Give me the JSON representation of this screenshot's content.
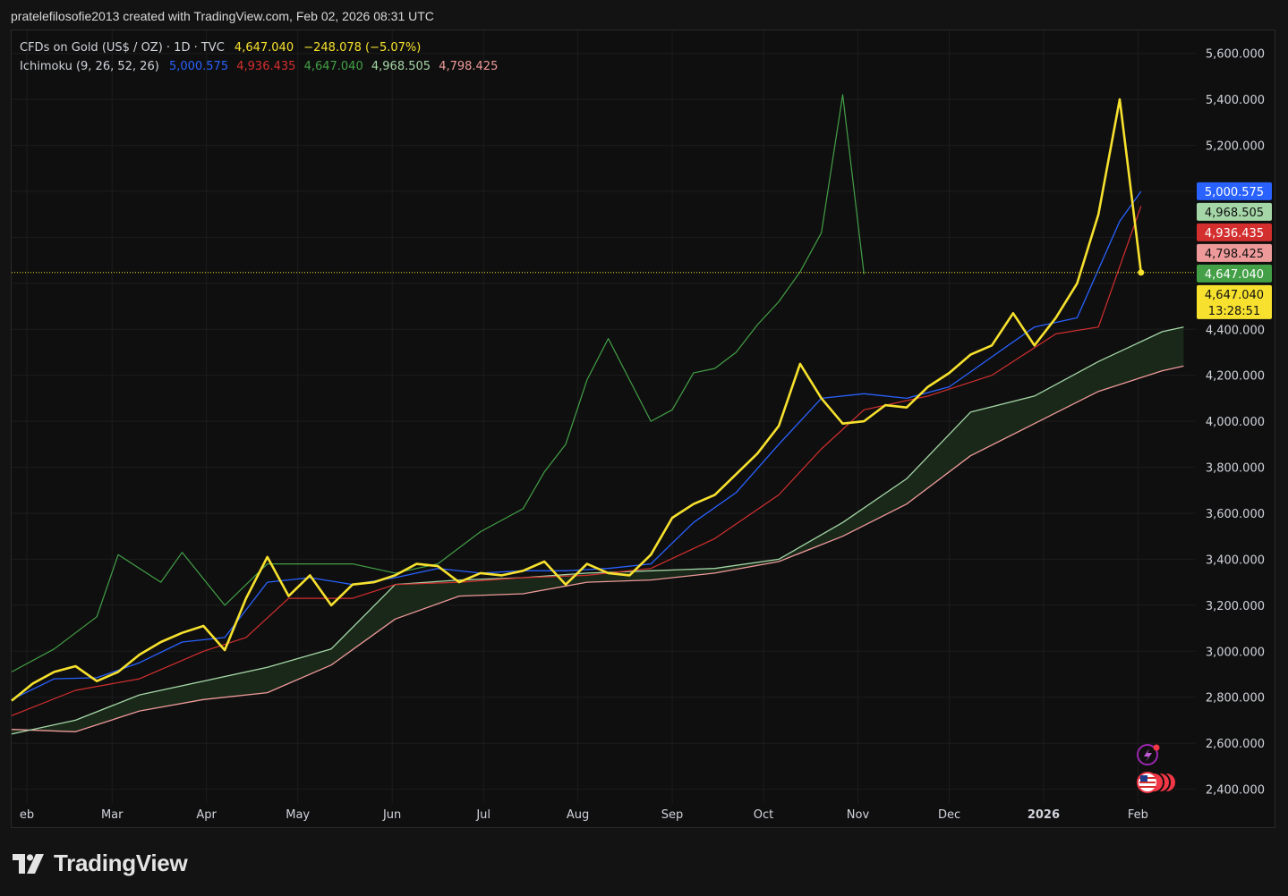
{
  "header": {
    "text": "pratelefilosofie2013 created with TradingView.com, Feb 02, 2026 08:31 UTC"
  },
  "legend": {
    "symbol": "CFDs on Gold (US$ / OZ) · 1D · TVC",
    "price": "4,647.040",
    "change": "−248.078 (−5.07%)",
    "indicator": "Ichimoku (9, 26, 52, 26)",
    "conversion": "5,000.575",
    "base": "4,936.435",
    "lagging": "4,647.040",
    "span_a": "4,968.505",
    "span_b": "4,798.425"
  },
  "brand": {
    "name": "TradingView"
  },
  "colors": {
    "price": "#f7e12e",
    "conversion": "#2962ff",
    "base": "#d32f2f",
    "lagging": "#43a047",
    "span_a": "#a5d6a7",
    "span_b": "#ef9a9a",
    "cloud_bull": "#1a2a1a",
    "cloud_bear": "#2a1a1a"
  },
  "chart_data": {
    "type": "line",
    "x_ticks": [
      {
        "label": "eb",
        "date": "2025-02-01"
      },
      {
        "label": "Mar",
        "date": "2025-03-01"
      },
      {
        "label": "Apr",
        "date": "2025-04-01"
      },
      {
        "label": "May",
        "date": "2025-05-01"
      },
      {
        "label": "Jun",
        "date": "2025-06-01"
      },
      {
        "label": "Jul",
        "date": "2025-07-01"
      },
      {
        "label": "Aug",
        "date": "2025-08-01"
      },
      {
        "label": "Sep",
        "date": "2025-09-01"
      },
      {
        "label": "Oct",
        "date": "2025-10-01"
      },
      {
        "label": "Nov",
        "date": "2025-11-01"
      },
      {
        "label": "Dec",
        "date": "2025-12-01"
      },
      {
        "label": "2026",
        "date": "2026-01-01",
        "bold": true
      },
      {
        "label": "Feb",
        "date": "2026-02-01"
      }
    ],
    "y_ticks": [
      "2,400.000",
      "2,600.000",
      "2,800.000",
      "3,000.000",
      "3,200.000",
      "3,400.000",
      "3,600.000",
      "3,800.000",
      "4,000.000",
      "4,200.000",
      "4,400.000",
      "5,200.000",
      "5,400.000",
      "5,600.000"
    ],
    "ylim": [
      2340,
      5700
    ],
    "xlim": [
      "2025-01-27",
      "2026-02-20"
    ],
    "last_price_line": 4647.04,
    "price_tags": [
      {
        "value": 5000.575,
        "label": "5,000.575",
        "bg": "#2962ff",
        "fg": "#ffffff"
      },
      {
        "value": 4968.505,
        "label": "4,968.505",
        "bg": "#a5d6a7",
        "fg": "#111111"
      },
      {
        "value": 4936.435,
        "label": "4,936.435",
        "bg": "#d32f2f",
        "fg": "#ffffff"
      },
      {
        "value": 4798.425,
        "label": "4,798.425",
        "bg": "#ef9a9a",
        "fg": "#111111"
      },
      {
        "value": 4647.04,
        "label": "4,647.040",
        "bg": "#43a047",
        "fg": "#ffffff"
      },
      {
        "value": 4647.04,
        "label": "4,647.040",
        "sub": "13:28:51",
        "bg": "#f7e12e",
        "fg": "#111111"
      }
    ],
    "series": [
      {
        "name": "CFDs on Gold (US$ / OZ)",
        "key": "price",
        "points": [
          [
            "2025-01-27",
            2785
          ],
          [
            "2025-02-03",
            2860
          ],
          [
            "2025-02-10",
            2910
          ],
          [
            "2025-02-17",
            2935
          ],
          [
            "2025-02-24",
            2870
          ],
          [
            "2025-03-03",
            2910
          ],
          [
            "2025-03-10",
            2985
          ],
          [
            "2025-03-17",
            3040
          ],
          [
            "2025-03-24",
            3080
          ],
          [
            "2025-03-31",
            3110
          ],
          [
            "2025-04-07",
            3005
          ],
          [
            "2025-04-14",
            3230
          ],
          [
            "2025-04-21",
            3410
          ],
          [
            "2025-04-28",
            3240
          ],
          [
            "2025-05-05",
            3330
          ],
          [
            "2025-05-12",
            3200
          ],
          [
            "2025-05-19",
            3290
          ],
          [
            "2025-05-26",
            3300
          ],
          [
            "2025-06-02",
            3330
          ],
          [
            "2025-06-09",
            3380
          ],
          [
            "2025-06-16",
            3370
          ],
          [
            "2025-06-23",
            3300
          ],
          [
            "2025-06-30",
            3340
          ],
          [
            "2025-07-07",
            3330
          ],
          [
            "2025-07-14",
            3350
          ],
          [
            "2025-07-21",
            3390
          ],
          [
            "2025-07-28",
            3290
          ],
          [
            "2025-08-04",
            3380
          ],
          [
            "2025-08-11",
            3340
          ],
          [
            "2025-08-18",
            3330
          ],
          [
            "2025-08-25",
            3420
          ],
          [
            "2025-09-01",
            3580
          ],
          [
            "2025-09-08",
            3640
          ],
          [
            "2025-09-15",
            3680
          ],
          [
            "2025-09-22",
            3770
          ],
          [
            "2025-09-29",
            3860
          ],
          [
            "2025-10-06",
            3980
          ],
          [
            "2025-10-13",
            4250
          ],
          [
            "2025-10-20",
            4100
          ],
          [
            "2025-10-27",
            3990
          ],
          [
            "2025-11-03",
            4000
          ],
          [
            "2025-11-10",
            4070
          ],
          [
            "2025-11-17",
            4060
          ],
          [
            "2025-11-24",
            4150
          ],
          [
            "2025-12-01",
            4210
          ],
          [
            "2025-12-08",
            4290
          ],
          [
            "2025-12-15",
            4330
          ],
          [
            "2025-12-22",
            4470
          ],
          [
            "2025-12-29",
            4330
          ],
          [
            "2026-01-05",
            4450
          ],
          [
            "2026-01-12",
            4600
          ],
          [
            "2026-01-19",
            4900
          ],
          [
            "2026-01-26",
            5400
          ],
          [
            "2026-02-02",
            4647
          ]
        ]
      },
      {
        "name": "Conversion Line",
        "key": "conversion",
        "points": [
          [
            "2025-01-27",
            2790
          ],
          [
            "2025-02-10",
            2880
          ],
          [
            "2025-02-24",
            2885
          ],
          [
            "2025-03-10",
            2950
          ],
          [
            "2025-03-24",
            3040
          ],
          [
            "2025-04-07",
            3060
          ],
          [
            "2025-04-21",
            3300
          ],
          [
            "2025-05-05",
            3320
          ],
          [
            "2025-05-19",
            3290
          ],
          [
            "2025-06-02",
            3320
          ],
          [
            "2025-06-16",
            3360
          ],
          [
            "2025-06-30",
            3340
          ],
          [
            "2025-07-14",
            3350
          ],
          [
            "2025-07-28",
            3350
          ],
          [
            "2025-08-11",
            3360
          ],
          [
            "2025-08-25",
            3380
          ],
          [
            "2025-09-08",
            3560
          ],
          [
            "2025-09-22",
            3690
          ],
          [
            "2025-10-06",
            3900
          ],
          [
            "2025-10-20",
            4100
          ],
          [
            "2025-11-03",
            4120
          ],
          [
            "2025-11-17",
            4100
          ],
          [
            "2025-12-01",
            4150
          ],
          [
            "2025-12-15",
            4280
          ],
          [
            "2025-12-29",
            4410
          ],
          [
            "2026-01-12",
            4450
          ],
          [
            "2026-01-26",
            4870
          ],
          [
            "2026-02-02",
            5000
          ]
        ]
      },
      {
        "name": "Base Line",
        "key": "base",
        "points": [
          [
            "2025-01-27",
            2720
          ],
          [
            "2025-02-17",
            2830
          ],
          [
            "2025-03-10",
            2880
          ],
          [
            "2025-03-31",
            3000
          ],
          [
            "2025-04-14",
            3060
          ],
          [
            "2025-04-28",
            3230
          ],
          [
            "2025-05-19",
            3230
          ],
          [
            "2025-06-02",
            3290
          ],
          [
            "2025-06-23",
            3300
          ],
          [
            "2025-07-14",
            3320
          ],
          [
            "2025-08-04",
            3330
          ],
          [
            "2025-08-25",
            3360
          ],
          [
            "2025-09-15",
            3490
          ],
          [
            "2025-10-06",
            3680
          ],
          [
            "2025-10-20",
            3880
          ],
          [
            "2025-11-03",
            4050
          ],
          [
            "2025-11-24",
            4110
          ],
          [
            "2025-12-15",
            4200
          ],
          [
            "2026-01-05",
            4380
          ],
          [
            "2026-01-19",
            4410
          ],
          [
            "2026-02-02",
            4936
          ]
        ]
      },
      {
        "name": "Lagging Span",
        "key": "lagging",
        "points": [
          [
            "2025-01-27",
            2910
          ],
          [
            "2025-02-10",
            3010
          ],
          [
            "2025-02-24",
            3150
          ],
          [
            "2025-03-03",
            3420
          ],
          [
            "2025-03-17",
            3300
          ],
          [
            "2025-03-24",
            3430
          ],
          [
            "2025-04-07",
            3200
          ],
          [
            "2025-04-21",
            3380
          ],
          [
            "2025-05-05",
            3380
          ],
          [
            "2025-05-19",
            3380
          ],
          [
            "2025-06-02",
            3340
          ],
          [
            "2025-06-16",
            3380
          ],
          [
            "2025-06-30",
            3520
          ],
          [
            "2025-07-14",
            3620
          ],
          [
            "2025-07-21",
            3780
          ],
          [
            "2025-07-28",
            3900
          ],
          [
            "2025-08-04",
            4180
          ],
          [
            "2025-08-11",
            4360
          ],
          [
            "2025-08-18",
            4180
          ],
          [
            "2025-08-25",
            4000
          ],
          [
            "2025-09-01",
            4050
          ],
          [
            "2025-09-08",
            4210
          ],
          [
            "2025-09-15",
            4230
          ],
          [
            "2025-09-22",
            4300
          ],
          [
            "2025-09-29",
            4420
          ],
          [
            "2025-10-06",
            4520
          ],
          [
            "2025-10-13",
            4650
          ],
          [
            "2025-10-20",
            4820
          ],
          [
            "2025-10-27",
            5420
          ],
          [
            "2025-11-03",
            4640
          ]
        ]
      },
      {
        "name": "Leading Span A",
        "key": "span_a",
        "points": [
          [
            "2025-01-27",
            2640
          ],
          [
            "2025-02-17",
            2700
          ],
          [
            "2025-03-10",
            2810
          ],
          [
            "2025-03-31",
            2870
          ],
          [
            "2025-04-21",
            2930
          ],
          [
            "2025-05-12",
            3010
          ],
          [
            "2025-06-02",
            3290
          ],
          [
            "2025-06-23",
            3310
          ],
          [
            "2025-07-14",
            3320
          ],
          [
            "2025-08-04",
            3340
          ],
          [
            "2025-08-25",
            3350
          ],
          [
            "2025-09-15",
            3360
          ],
          [
            "2025-10-06",
            3400
          ],
          [
            "2025-10-27",
            3560
          ],
          [
            "2025-11-17",
            3750
          ],
          [
            "2025-12-08",
            4040
          ],
          [
            "2025-12-29",
            4110
          ],
          [
            "2026-01-19",
            4260
          ],
          [
            "2026-02-09",
            4390
          ],
          [
            "2026-02-16",
            4410
          ]
        ]
      },
      {
        "name": "Leading Span B",
        "key": "span_b",
        "points": [
          [
            "2025-01-27",
            2660
          ],
          [
            "2025-02-17",
            2650
          ],
          [
            "2025-03-10",
            2740
          ],
          [
            "2025-03-31",
            2790
          ],
          [
            "2025-04-21",
            2820
          ],
          [
            "2025-05-12",
            2940
          ],
          [
            "2025-06-02",
            3140
          ],
          [
            "2025-06-23",
            3240
          ],
          [
            "2025-07-14",
            3250
          ],
          [
            "2025-08-04",
            3300
          ],
          [
            "2025-08-25",
            3310
          ],
          [
            "2025-09-15",
            3340
          ],
          [
            "2025-10-06",
            3390
          ],
          [
            "2025-10-27",
            3500
          ],
          [
            "2025-11-17",
            3640
          ],
          [
            "2025-12-08",
            3850
          ],
          [
            "2025-12-29",
            3990
          ],
          [
            "2026-01-19",
            4130
          ],
          [
            "2026-02-09",
            4220
          ],
          [
            "2026-02-16",
            4240
          ]
        ]
      }
    ]
  }
}
